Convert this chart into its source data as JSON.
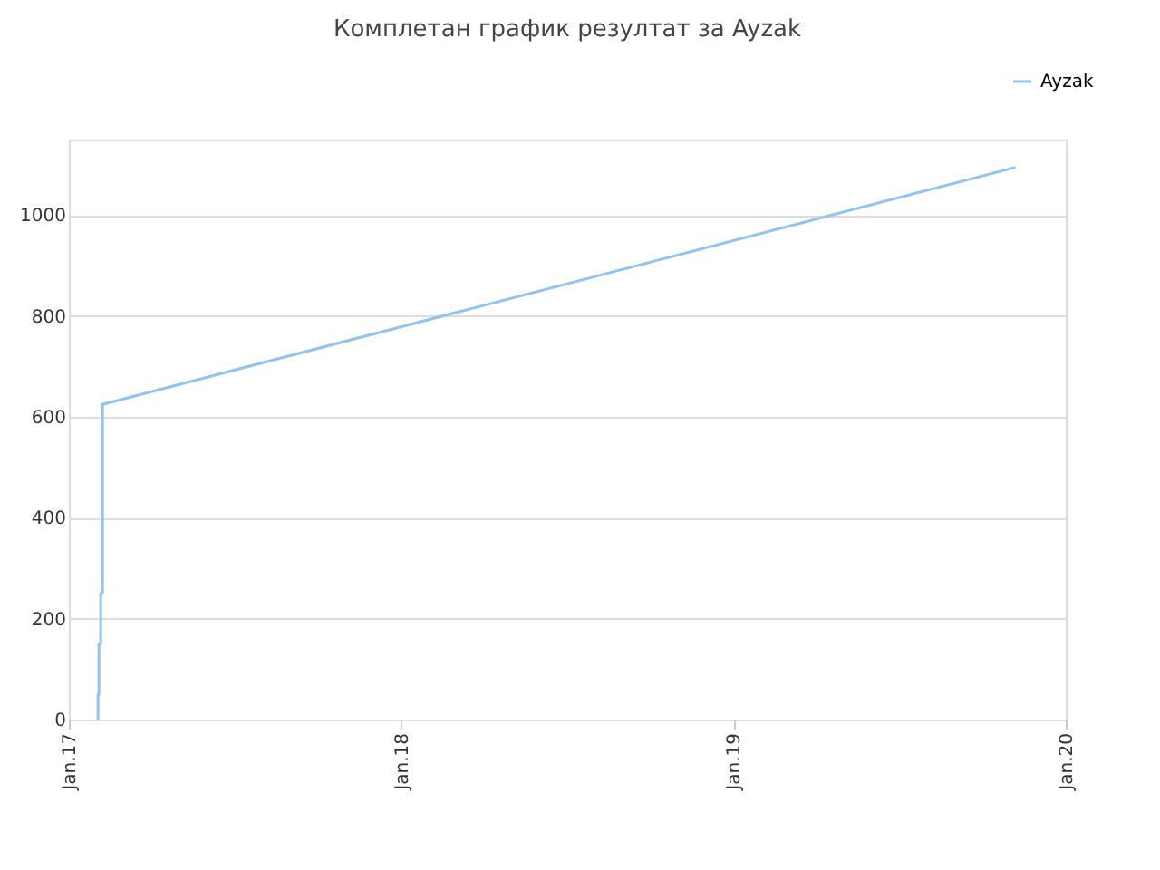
{
  "chart_data": {
    "type": "line",
    "title": "Комплетан график резултат за Ayzak",
    "x": [
      "2017-02-02",
      "2017-02-02",
      "2017-02-03",
      "2017-02-03",
      "2017-02-05",
      "2017-02-05",
      "2017-02-07",
      "2017-02-07",
      "2019-11-07"
    ],
    "series": [
      {
        "name": "Ayzak",
        "color": "#90c3f0",
        "values": [
          0,
          50,
          50,
          150,
          150,
          250,
          250,
          625,
          1095
        ]
      }
    ],
    "xlim": [
      "2017-01-01",
      "2020-01-01"
    ],
    "xticks": [
      {
        "value": "2017-01-01",
        "label": "Jan.17"
      },
      {
        "value": "2018-01-01",
        "label": "Jan.18"
      },
      {
        "value": "2019-01-01",
        "label": "Jan.19"
      },
      {
        "value": "2020-01-01",
        "label": "Jan.20"
      }
    ],
    "ylim": [
      0,
      1150
    ],
    "yticks": [
      0,
      200,
      400,
      600,
      800,
      1000
    ],
    "grid": "y",
    "legend": "top right"
  }
}
